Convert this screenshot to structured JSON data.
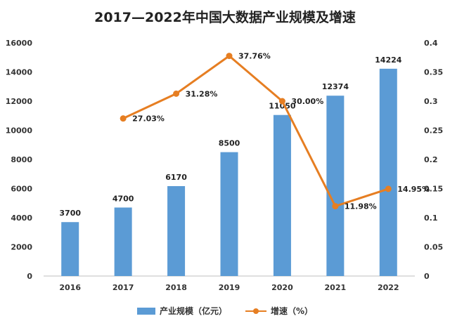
{
  "chart_data": {
    "type": "bar",
    "title": "2017—2022年中国大数据产业规模及增速",
    "categories": [
      "2016",
      "2017",
      "2018",
      "2019",
      "2020",
      "2021",
      "2022"
    ],
    "series": [
      {
        "name": "产业规模（亿元）",
        "type": "bar",
        "axis": "left",
        "values": [
          3700,
          4700,
          6170,
          8500,
          11050,
          12374,
          14224
        ],
        "labels": [
          "3700",
          "4700",
          "6170",
          "8500",
          "11050",
          "12374",
          "14224"
        ]
      },
      {
        "name": "增速（%）",
        "type": "line",
        "axis": "right",
        "values": [
          null,
          0.2703,
          0.3128,
          0.3776,
          0.3,
          0.1198,
          0.1495
        ],
        "labels": [
          "",
          "27.03%",
          "31.28%",
          "37.76%",
          "30.00%",
          "11.98%",
          "14.95%"
        ]
      }
    ],
    "y_left": {
      "min": 0,
      "max": 16000,
      "ticks": [
        0,
        2000,
        4000,
        6000,
        8000,
        10000,
        12000,
        14000,
        16000
      ],
      "tick_labels": [
        "0",
        "2000",
        "4000",
        "6000",
        "8000",
        "10000",
        "12000",
        "14000",
        "16000"
      ]
    },
    "y_right": {
      "min": 0,
      "max": 0.4,
      "ticks": [
        0,
        0.05,
        0.1,
        0.15,
        0.2,
        0.25,
        0.3,
        0.35,
        0.4
      ],
      "tick_labels": [
        "0",
        "0.05",
        "0.1",
        "0.15",
        "0.2",
        "0.25",
        "0.3",
        "0.35",
        "0.4"
      ]
    },
    "grid": false,
    "legend_position": "bottom",
    "colors": {
      "bar": "#5b9bd5",
      "line": "#e67e22",
      "axis": "#bfbfbf"
    }
  }
}
